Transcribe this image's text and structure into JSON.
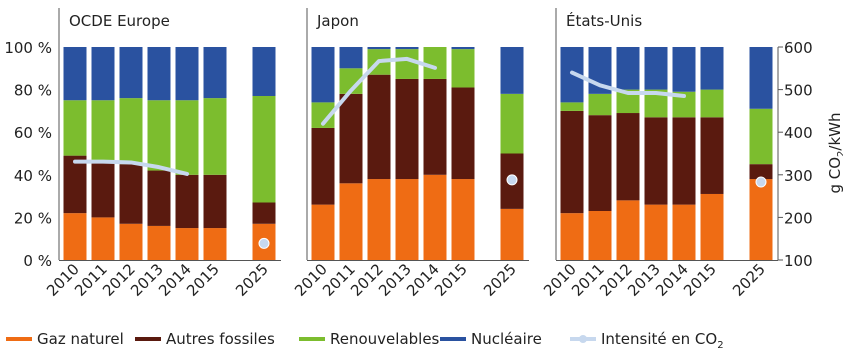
{
  "chart_data": {
    "type": "bar",
    "stacked": true,
    "categories": [
      "2010",
      "2011",
      "2012",
      "2013",
      "2014",
      "2015",
      "2025"
    ],
    "y_left_ticks": [
      "0 %",
      "20 %",
      "40 %",
      "60 %",
      "80 %",
      "100 %"
    ],
    "y_left_range": [
      0,
      100
    ],
    "y_right_ticks": [
      "100",
      "200",
      "300",
      "400",
      "500",
      "600"
    ],
    "y_right_range": [
      100,
      600
    ],
    "y_right_label_parts": [
      "g CO",
      "2",
      "/kWh"
    ],
    "colors": {
      "gas": "#ef6c14",
      "other_fossil": "#5a1a0f",
      "renewables": "#7cbd2e",
      "nuclear": "#2a52a0",
      "intensity": "#c7d8ee"
    },
    "legend": [
      {
        "key": "gas",
        "label": "Gaz naturel"
      },
      {
        "key": "other_fossil",
        "label": "Autres fossiles"
      },
      {
        "key": "renewables",
        "label": "Renouvelables"
      },
      {
        "key": "nuclear",
        "label": "Nucléaire"
      },
      {
        "key": "intensity",
        "label": "Intensité en CO",
        "sub": "2"
      }
    ],
    "panels": [
      {
        "name": "OCDE Europe",
        "series": {
          "gas": [
            22,
            20,
            17,
            16,
            15,
            15,
            17
          ],
          "other_fossil": [
            27,
            26,
            28,
            26,
            25,
            25,
            10
          ],
          "renewables": [
            26,
            29,
            31,
            33,
            35,
            36,
            50
          ],
          "nuclear": [
            25,
            25,
            24,
            25,
            25,
            24,
            23
          ]
        },
        "intensity": [
          331,
          331,
          329,
          318,
          302,
          null,
          139
        ]
      },
      {
        "name": "Japon",
        "series": {
          "gas": [
            26,
            36,
            38,
            38,
            40,
            38,
            24
          ],
          "other_fossil": [
            36,
            42,
            49,
            47,
            45,
            43,
            26
          ],
          "renewables": [
            12,
            12,
            12,
            14,
            15,
            18,
            28
          ],
          "nuclear": [
            26,
            10,
            1,
            1,
            0,
            1,
            22
          ]
        },
        "intensity": [
          420,
          498,
          567,
          572,
          551,
          null,
          288
        ]
      },
      {
        "name": "États-Unis",
        "series": {
          "gas": [
            22,
            23,
            28,
            26,
            26,
            31,
            38
          ],
          "other_fossil": [
            48,
            45,
            41,
            41,
            41,
            36,
            7
          ],
          "renewables": [
            4,
            10,
            11,
            13,
            12,
            13,
            26
          ],
          "nuclear": [
            26,
            22,
            20,
            20,
            21,
            20,
            29
          ]
        },
        "intensity": [
          540,
          510,
          492,
          492,
          485,
          null,
          283
        ]
      }
    ]
  }
}
